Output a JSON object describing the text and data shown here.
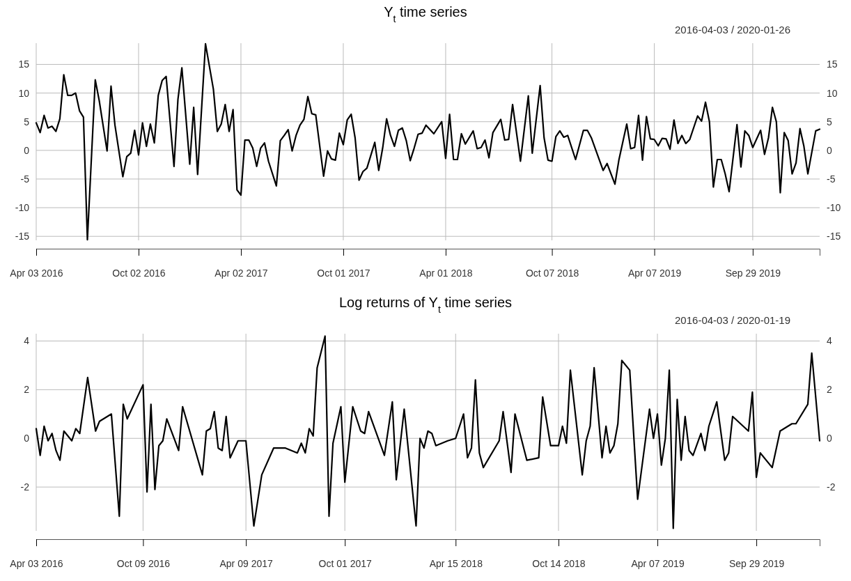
{
  "chart_data": [
    {
      "type": "line",
      "title": "Y$_{t}$  time series",
      "subtitle": "2016-04-03 / 2020-01-26",
      "grid": true,
      "marker": "none",
      "line_style": "solid",
      "xlim": [
        "2016-04-03",
        "2020-01-26"
      ],
      "xticks": [
        {
          "value": "2016-04-03",
          "label": "Apr 03 2016"
        },
        {
          "value": "2016-10-02",
          "label": "Oct 02 2016"
        },
        {
          "value": "2017-04-02",
          "label": "Apr 02 2017"
        },
        {
          "value": "2017-10-01",
          "label": "Oct 01 2017"
        },
        {
          "value": "2018-04-01",
          "label": "Apr 01 2018"
        },
        {
          "value": "2018-10-07",
          "label": "Oct 07 2018"
        },
        {
          "value": "2019-04-07",
          "label": "Apr 07 2019"
        },
        {
          "value": "2019-09-29",
          "label": "Sep 29 2019"
        }
      ],
      "ylim": [
        -15.7,
        18.7
      ],
      "yticks": [
        -15,
        -10,
        -5,
        0,
        5,
        10,
        15
      ],
      "y2lim": [
        -15.7,
        18.7
      ],
      "y2ticks": [
        -15,
        -10,
        -5,
        0,
        5,
        10,
        15
      ],
      "series": [
        {
          "color": "#000000",
          "x": [
            "2016-04-03",
            "2016-04-10",
            "2016-04-17",
            "2016-04-24",
            "2016-05-01",
            "2016-05-08",
            "2016-05-15",
            "2016-05-22",
            "2016-05-29",
            "2016-06-05",
            "2016-06-12",
            "2016-06-19",
            "2016-06-26",
            "2016-07-03",
            "2016-07-17",
            "2016-07-24",
            "2016-08-07",
            "2016-08-14",
            "2016-08-21",
            "2016-09-04",
            "2016-09-11",
            "2016-09-18",
            "2016-09-25",
            "2016-10-02",
            "2016-10-09",
            "2016-10-16",
            "2016-10-23",
            "2016-10-30",
            "2016-11-06",
            "2016-11-13",
            "2016-11-20",
            "2016-12-04",
            "2016-12-11",
            "2016-12-18",
            "2017-01-01",
            "2017-01-08",
            "2017-01-15",
            "2017-01-29",
            "2017-02-12",
            "2017-02-19",
            "2017-02-26",
            "2017-03-05",
            "2017-03-12",
            "2017-03-19",
            "2017-03-26",
            "2017-04-02",
            "2017-04-09",
            "2017-04-16",
            "2017-04-23",
            "2017-04-30",
            "2017-05-07",
            "2017-05-14",
            "2017-05-21",
            "2017-06-04",
            "2017-06-11",
            "2017-06-18",
            "2017-06-25",
            "2017-07-02",
            "2017-07-09",
            "2017-07-16",
            "2017-07-23",
            "2017-07-30",
            "2017-08-06",
            "2017-08-13",
            "2017-08-27",
            "2017-09-03",
            "2017-09-10",
            "2017-09-17",
            "2017-09-24",
            "2017-10-01",
            "2017-10-08",
            "2017-10-15",
            "2017-10-22",
            "2017-10-29",
            "2017-11-05",
            "2017-11-12",
            "2017-11-26",
            "2017-12-03",
            "2017-12-10",
            "2017-12-17",
            "2017-12-24",
            "2017-12-31",
            "2018-01-07",
            "2018-01-14",
            "2018-01-21",
            "2018-01-28",
            "2018-02-04",
            "2018-02-11",
            "2018-02-18",
            "2018-02-25",
            "2018-03-11",
            "2018-03-25",
            "2018-04-01",
            "2018-04-08",
            "2018-04-15",
            "2018-04-22",
            "2018-04-29",
            "2018-05-06",
            "2018-05-20",
            "2018-05-27",
            "2018-06-03",
            "2018-06-10",
            "2018-06-17",
            "2018-06-24",
            "2018-07-08",
            "2018-07-15",
            "2018-07-22",
            "2018-07-29",
            "2018-08-12",
            "2018-08-26",
            "2018-09-02",
            "2018-09-16",
            "2018-09-23",
            "2018-09-30",
            "2018-10-07",
            "2018-10-14",
            "2018-10-21",
            "2018-10-28",
            "2018-11-04",
            "2018-11-18",
            "2018-12-02",
            "2018-12-09",
            "2018-12-16",
            "2019-01-06",
            "2019-01-13",
            "2019-01-27",
            "2019-02-03",
            "2019-02-17",
            "2019-02-24",
            "2019-03-03",
            "2019-03-10",
            "2019-03-17",
            "2019-03-24",
            "2019-03-31",
            "2019-04-07",
            "2019-04-14",
            "2019-04-21",
            "2019-04-28",
            "2019-05-05",
            "2019-05-12",
            "2019-05-19",
            "2019-05-26",
            "2019-06-02",
            "2019-06-09",
            "2019-06-23",
            "2019-06-30",
            "2019-07-07",
            "2019-07-14",
            "2019-07-21",
            "2019-07-28",
            "2019-08-04",
            "2019-08-11",
            "2019-08-18",
            "2019-09-01",
            "2019-09-08",
            "2019-09-15",
            "2019-09-22",
            "2019-09-29",
            "2019-10-13",
            "2019-10-20",
            "2019-10-27",
            "2019-11-03",
            "2019-11-10",
            "2019-11-17",
            "2019-11-24",
            "2019-12-01",
            "2019-12-08",
            "2019-12-15",
            "2019-12-22",
            "2019-12-29",
            "2020-01-05",
            "2020-01-19",
            "2020-01-26"
          ],
          "values": [
            4.8,
            3.1,
            6.1,
            3.9,
            4.2,
            3.3,
            5.5,
            13.2,
            9.6,
            9.6,
            10.0,
            6.9,
            5.8,
            -15.6,
            12.3,
            8.7,
            -0.1,
            11.2,
            4.4,
            -4.6,
            -1.1,
            -0.5,
            3.5,
            -0.8,
            4.8,
            0.7,
            4.6,
            1.3,
            9.6,
            12.2,
            12.9,
            -2.8,
            8.9,
            14.4,
            -2.4,
            7.5,
            -4.2,
            18.6,
            10.7,
            3.3,
            4.6,
            8.0,
            3.3,
            7.1,
            -6.9,
            -7.8,
            1.8,
            1.8,
            0.4,
            -2.8,
            0.4,
            1.3,
            -1.9,
            -6.2,
            1.7,
            2.6,
            3.6,
            -0.1,
            2.6,
            4.4,
            5.4,
            9.4,
            6.4,
            6.2,
            -4.5,
            -0.1,
            -1.5,
            -1.7,
            3.0,
            1.0,
            5.3,
            6.3,
            2.2,
            -5.2,
            -3.7,
            -3.1,
            1.4,
            -3.5,
            0.4,
            5.5,
            2.6,
            0.7,
            3.5,
            3.9,
            1.7,
            -1.8,
            0.4,
            2.8,
            3.0,
            4.4,
            2.9,
            5.0,
            -1.4,
            6.3,
            -1.6,
            -1.6,
            2.9,
            1.1,
            3.4,
            0.3,
            0.5,
            1.8,
            -1.3,
            3.1,
            5.4,
            1.8,
            1.9,
            8.0,
            -1.9,
            9.5,
            -0.5,
            11.3,
            2.2,
            -1.7,
            -1.9,
            2.4,
            3.4,
            2.3,
            2.6,
            -1.6,
            3.5,
            3.5,
            2.2,
            -3.5,
            -2.3,
            -5.9,
            -1.7,
            4.6,
            0.3,
            0.5,
            6.1,
            -1.7,
            5.9,
            2.0,
            1.9,
            0.8,
            2.1,
            2.0,
            0.2,
            5.3,
            1.2,
            2.6,
            1.2,
            1.9,
            6.0,
            5.1,
            8.4,
            5.0,
            -6.4,
            -1.6,
            -1.6,
            -4.1,
            -7.2,
            4.5,
            -2.9,
            3.4,
            2.6,
            0.5,
            3.5,
            -0.7,
            2.2,
            7.5,
            5.0,
            -7.4,
            3.1,
            1.7,
            -4.1,
            -2.2,
            3.8,
            0.7,
            -4.1,
            3.4,
            3.7
          ]
        }
      ]
    },
    {
      "type": "line",
      "title": "Log returns of  Y$_{t}$  time series",
      "subtitle": "2016-04-03 / 2020-01-19",
      "grid": true,
      "marker": "none",
      "line_style": "solid",
      "xlim": [
        "2016-04-03",
        "2020-01-19"
      ],
      "xticks": [
        {
          "value": "2016-04-03",
          "label": "Apr 03 2016"
        },
        {
          "value": "2016-10-09",
          "label": "Oct 09 2016"
        },
        {
          "value": "2017-04-09",
          "label": "Apr 09 2017"
        },
        {
          "value": "2017-10-01",
          "label": "Oct 01 2017"
        },
        {
          "value": "2018-04-15",
          "label": "Apr 15 2018"
        },
        {
          "value": "2018-10-14",
          "label": "Oct 14 2018"
        },
        {
          "value": "2019-04-07",
          "label": "Apr 07 2019"
        },
        {
          "value": "2019-09-29",
          "label": "Sep 29 2019"
        }
      ],
      "ylim": [
        -3.8,
        4.3
      ],
      "yticks": [
        -2,
        0,
        2,
        4
      ],
      "y2lim": [
        -3.8,
        4.3
      ],
      "y2ticks": [
        -2,
        0,
        2,
        4
      ],
      "series": [
        {
          "color": "#000000",
          "x": [
            "2016-04-03",
            "2016-04-10",
            "2016-04-17",
            "2016-04-24",
            "2016-05-01",
            "2016-05-08",
            "2016-05-15",
            "2016-05-22",
            "2016-05-29",
            "2016-06-05",
            "2016-06-12",
            "2016-06-19",
            "2016-07-03",
            "2016-07-17",
            "2016-07-24",
            "2016-08-14",
            "2016-08-28",
            "2016-09-04",
            "2016-09-11",
            "2016-10-09",
            "2016-10-16",
            "2016-10-23",
            "2016-10-30",
            "2016-11-06",
            "2016-11-13",
            "2016-11-20",
            "2016-12-11",
            "2016-12-18",
            "2017-01-22",
            "2017-01-29",
            "2017-02-05",
            "2017-02-12",
            "2017-02-19",
            "2017-02-26",
            "2017-03-05",
            "2017-03-12",
            "2017-03-26",
            "2017-04-09",
            "2017-04-23",
            "2017-05-07",
            "2017-05-28",
            "2017-06-18",
            "2017-07-09",
            "2017-07-16",
            "2017-07-23",
            "2017-07-30",
            "2017-08-06",
            "2017-08-13",
            "2017-08-27",
            "2017-09-03",
            "2017-09-10",
            "2017-09-24",
            "2017-10-01",
            "2017-10-15",
            "2017-10-29",
            "2017-11-05",
            "2017-11-12",
            "2017-12-10",
            "2017-12-24",
            "2017-12-31",
            "2018-01-14",
            "2018-02-04",
            "2018-02-11",
            "2018-02-18",
            "2018-02-25",
            "2018-03-04",
            "2018-03-11",
            "2018-04-01",
            "2018-04-15",
            "2018-04-29",
            "2018-05-06",
            "2018-05-13",
            "2018-05-20",
            "2018-05-27",
            "2018-06-03",
            "2018-07-01",
            "2018-07-08",
            "2018-07-22",
            "2018-07-29",
            "2018-08-19",
            "2018-09-09",
            "2018-09-16",
            "2018-09-30",
            "2018-10-14",
            "2018-10-21",
            "2018-10-28",
            "2018-11-04",
            "2018-11-25",
            "2018-12-02",
            "2018-12-09",
            "2018-12-16",
            "2018-12-30",
            "2019-01-06",
            "2019-01-13",
            "2019-01-20",
            "2019-01-27",
            "2019-02-03",
            "2019-02-17",
            "2019-03-03",
            "2019-03-24",
            "2019-03-31",
            "2019-04-07",
            "2019-04-14",
            "2019-04-21",
            "2019-04-28",
            "2019-05-05",
            "2019-05-12",
            "2019-05-19",
            "2019-05-26",
            "2019-06-02",
            "2019-06-09",
            "2019-06-23",
            "2019-06-30",
            "2019-07-07",
            "2019-07-21",
            "2019-08-04",
            "2019-08-11",
            "2019-08-18",
            "2019-09-15",
            "2019-09-22",
            "2019-09-29",
            "2019-10-06",
            "2019-10-27",
            "2019-11-10",
            "2019-12-01",
            "2019-12-08",
            "2019-12-29",
            "2020-01-05",
            "2020-01-19"
          ],
          "values": [
            0.4,
            -0.7,
            0.5,
            -0.1,
            0.2,
            -0.5,
            -0.9,
            0.3,
            0.1,
            -0.1,
            0.4,
            0.2,
            2.5,
            0.3,
            0.7,
            1.0,
            -3.2,
            1.4,
            0.8,
            2.2,
            -2.2,
            1.4,
            -2.1,
            -0.3,
            -0.1,
            0.8,
            -0.5,
            1.3,
            -1.5,
            0.3,
            0.4,
            1.1,
            -0.4,
            -0.5,
            0.9,
            -0.8,
            -0.1,
            -0.1,
            -3.6,
            -1.5,
            -0.4,
            -0.4,
            -0.6,
            -0.2,
            -0.6,
            0.4,
            0.1,
            2.9,
            4.2,
            -3.2,
            -0.2,
            1.3,
            -1.8,
            1.3,
            0.3,
            0.2,
            1.1,
            -0.7,
            1.5,
            -1.7,
            1.2,
            -3.6,
            0.0,
            -0.4,
            0.3,
            0.2,
            -0.3,
            -0.1,
            0.0,
            1.0,
            -0.8,
            -0.4,
            2.4,
            -0.6,
            -1.2,
            -0.1,
            1.1,
            -1.4,
            1.0,
            -0.9,
            -0.8,
            1.7,
            -0.3,
            -0.3,
            0.5,
            -0.2,
            2.8,
            -1.5,
            -0.1,
            0.5,
            2.9,
            -0.8,
            0.5,
            -0.6,
            -0.3,
            0.6,
            3.2,
            2.8,
            -2.5,
            1.2,
            0.0,
            1.0,
            -1.1,
            0.0,
            2.8,
            -3.7,
            1.6,
            -0.9,
            0.9,
            -0.5,
            -0.7,
            0.2,
            -0.5,
            0.5,
            1.5,
            -0.9,
            -0.6,
            0.9,
            0.3,
            1.9,
            -1.6,
            -0.6,
            -1.2,
            0.3,
            0.6,
            0.6,
            1.4,
            3.5,
            -0.1
          ]
        }
      ]
    }
  ]
}
